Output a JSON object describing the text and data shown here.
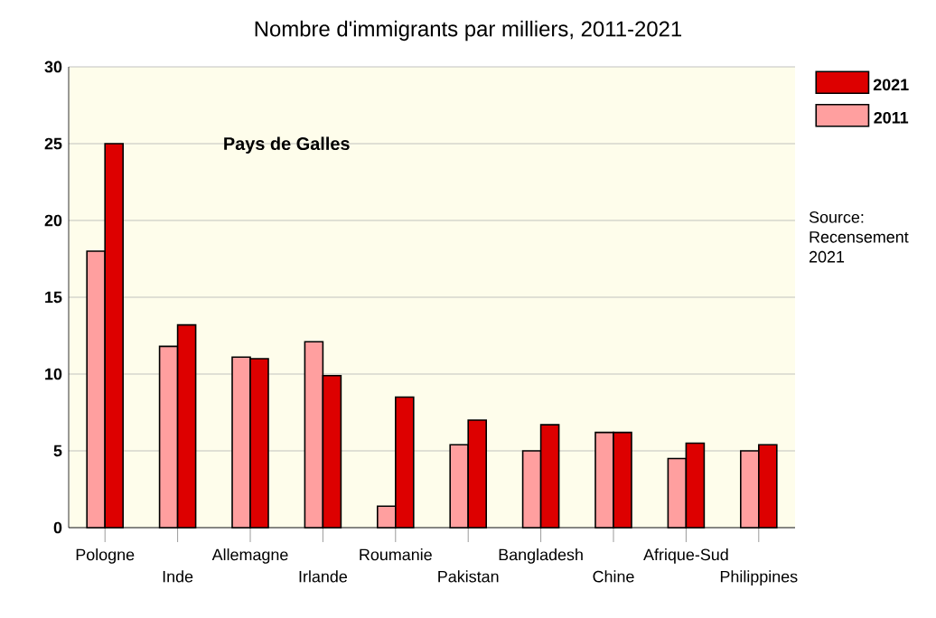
{
  "chart_data": {
    "type": "bar",
    "title": "Nombre d'immigrants par milliers, 2011-2021",
    "subtitle": "Pays de Galles",
    "categories": [
      "Pologne",
      "Inde",
      "Allemagne",
      "Irlande",
      "Roumanie",
      "Pakistan",
      "Bangladesh",
      "Chine",
      "Afrique-Sud",
      "Philippines"
    ],
    "series": [
      {
        "name": "2011",
        "color": "#ff9f9f",
        "values": [
          18,
          11.8,
          11.1,
          12.1,
          1.4,
          5.4,
          5.0,
          6.2,
          4.5,
          5.0
        ]
      },
      {
        "name": "2021",
        "color": "#dd0000",
        "values": [
          25,
          13.2,
          11.0,
          9.9,
          8.5,
          7.0,
          6.7,
          6.2,
          5.5,
          5.4
        ]
      }
    ],
    "ylim": [
      0,
      30
    ],
    "yticks": [
      0,
      5,
      10,
      15,
      20,
      25,
      30
    ],
    "grid": "y",
    "legend": "right",
    "annotations": [
      "Source: Recensement 2021"
    ]
  }
}
